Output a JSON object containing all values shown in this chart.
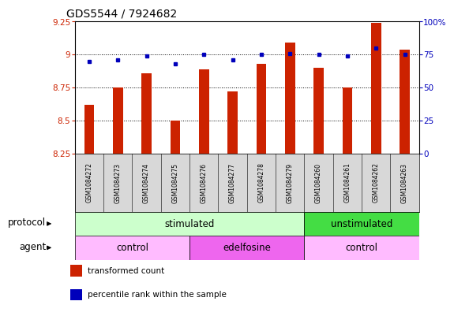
{
  "title": "GDS5544 / 7924682",
  "samples": [
    "GSM1084272",
    "GSM1084273",
    "GSM1084274",
    "GSM1084275",
    "GSM1084276",
    "GSM1084277",
    "GSM1084278",
    "GSM1084279",
    "GSM1084260",
    "GSM1084261",
    "GSM1084262",
    "GSM1084263"
  ],
  "bar_values": [
    8.62,
    8.75,
    8.86,
    8.5,
    8.89,
    8.72,
    8.93,
    9.09,
    8.9,
    8.75,
    9.24,
    9.04
  ],
  "dot_values": [
    70,
    71,
    74,
    68,
    75,
    71,
    75,
    76,
    75,
    74,
    80,
    75
  ],
  "ylim_left": [
    8.25,
    9.25
  ],
  "ylim_right": [
    0,
    100
  ],
  "yticks_left": [
    8.25,
    8.5,
    8.75,
    9.0,
    9.25
  ],
  "yticks_right": [
    0,
    25,
    50,
    75,
    100
  ],
  "ytick_labels_left": [
    "8.25",
    "8.5",
    "8.75",
    "9",
    "9.25"
  ],
  "ytick_labels_right": [
    "0",
    "25",
    "50",
    "75",
    "100%"
  ],
  "bar_color": "#cc2200",
  "dot_color": "#0000bb",
  "bar_bottom": 8.25,
  "protocol_groups": [
    {
      "label": "stimulated",
      "start": 0,
      "end": 8,
      "color": "#ccffcc"
    },
    {
      "label": "unstimulated",
      "start": 8,
      "end": 12,
      "color": "#44dd44"
    }
  ],
  "agent_groups": [
    {
      "label": "control",
      "start": 0,
      "end": 4,
      "color": "#ffbbff"
    },
    {
      "label": "edelfosine",
      "start": 4,
      "end": 8,
      "color": "#ee66ee"
    },
    {
      "label": "control",
      "start": 8,
      "end": 12,
      "color": "#ffbbff"
    }
  ],
  "legend_items": [
    {
      "label": "transformed count",
      "color": "#cc2200"
    },
    {
      "label": "percentile rank within the sample",
      "color": "#0000bb"
    }
  ],
  "title_fontsize": 10,
  "tick_fontsize": 7.5,
  "sample_fontsize": 5.5,
  "row_fontsize": 8.5,
  "legend_fontsize": 7.5
}
